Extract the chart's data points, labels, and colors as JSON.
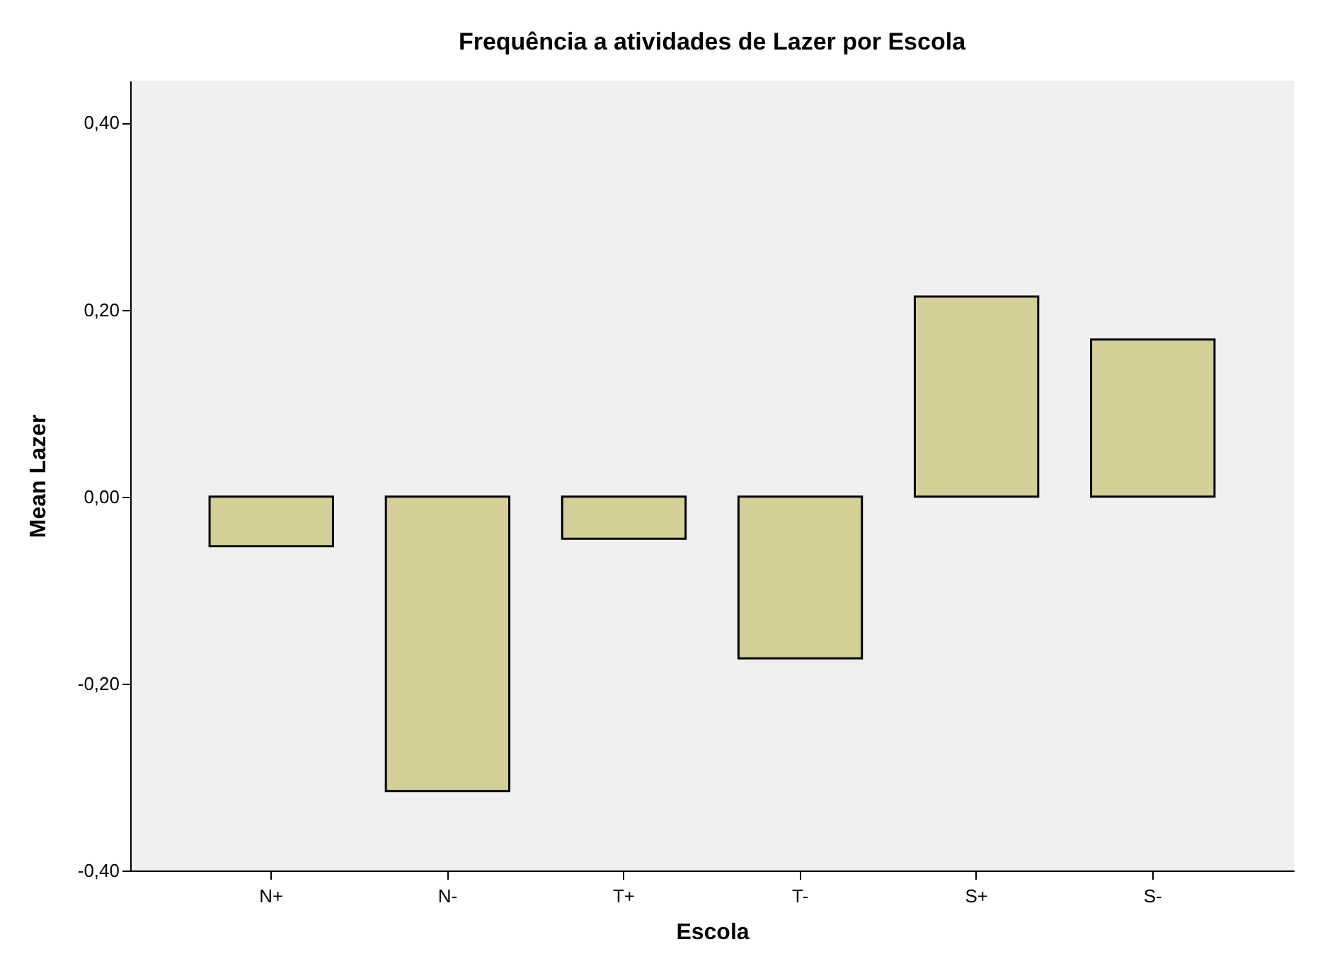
{
  "chart_data": {
    "type": "bar",
    "title": "Frequência a atividades de Lazer por Escola",
    "xlabel": "Escola",
    "ylabel": "Mean Lazer",
    "categories": [
      "N+",
      "N-",
      "T+",
      "T-",
      "S+",
      "S-"
    ],
    "values": [
      -0.053,
      -0.315,
      -0.045,
      -0.173,
      0.214,
      0.168
    ],
    "color": "#d3cf96",
    "ylim": [
      -0.4,
      0.445
    ],
    "yticks": [
      {
        "value": -0.4,
        "label": "-0,40"
      },
      {
        "value": -0.2,
        "label": "-0,20"
      },
      {
        "value": 0,
        "label": "0,00"
      },
      {
        "value": 0.2,
        "label": "0,20"
      },
      {
        "value": 0.4,
        "label": "0,40"
      }
    ],
    "grid": false
  }
}
